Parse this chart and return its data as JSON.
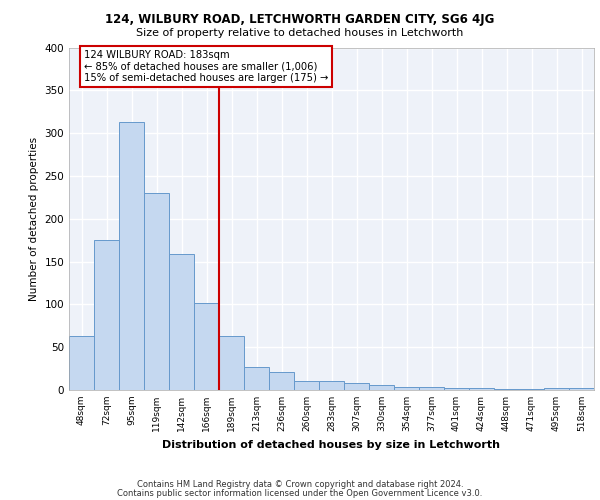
{
  "title1": "124, WILBURY ROAD, LETCHWORTH GARDEN CITY, SG6 4JG",
  "title2": "Size of property relative to detached houses in Letchworth",
  "xlabel": "Distribution of detached houses by size in Letchworth",
  "ylabel": "Number of detached properties",
  "categories": [
    "48sqm",
    "72sqm",
    "95sqm",
    "119sqm",
    "142sqm",
    "166sqm",
    "189sqm",
    "213sqm",
    "236sqm",
    "260sqm",
    "283sqm",
    "307sqm",
    "330sqm",
    "354sqm",
    "377sqm",
    "401sqm",
    "424sqm",
    "448sqm",
    "471sqm",
    "495sqm",
    "518sqm"
  ],
  "values": [
    63,
    175,
    313,
    230,
    159,
    102,
    63,
    27,
    21,
    10,
    10,
    8,
    6,
    4,
    3,
    2,
    2,
    1,
    1,
    2,
    2
  ],
  "bar_color": "#c5d8f0",
  "bar_edge_color": "#6699cc",
  "vline_color": "#cc0000",
  "annotation_text": "124 WILBURY ROAD: 183sqm\n← 85% of detached houses are smaller (1,006)\n15% of semi-detached houses are larger (175) →",
  "annotation_box_color": "#ffffff",
  "annotation_box_edge": "#cc0000",
  "ylim": [
    0,
    400
  ],
  "yticks": [
    0,
    50,
    100,
    150,
    200,
    250,
    300,
    350,
    400
  ],
  "bg_color": "#eef2f9",
  "grid_color": "#ffffff",
  "footer1": "Contains HM Land Registry data © Crown copyright and database right 2024.",
  "footer2": "Contains public sector information licensed under the Open Government Licence v3.0."
}
